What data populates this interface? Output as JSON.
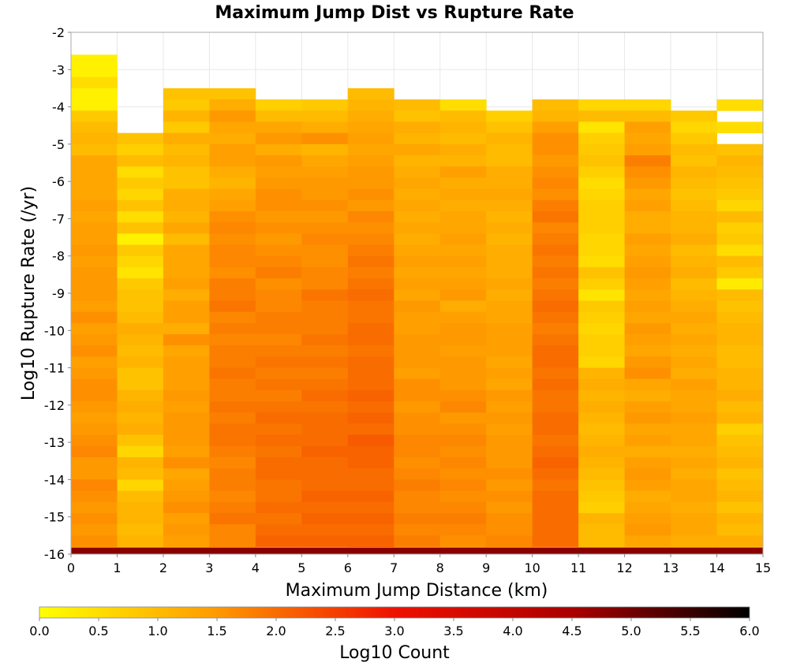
{
  "chart_data": {
    "type": "heatmap",
    "title": "Maximum Jump Dist vs Rupture Rate",
    "xlabel": "Maximum Jump Distance (km)",
    "ylabel": "Log10 Rupture Rate (/yr)",
    "colorbar_label": "Log10 Count",
    "xlim": [
      0,
      15
    ],
    "ylim": [
      -16,
      -2
    ],
    "x_ticks": [
      "0",
      "1",
      "2",
      "3",
      "4",
      "5",
      "6",
      "7",
      "8",
      "9",
      "10",
      "11",
      "12",
      "13",
      "14",
      "15"
    ],
    "y_ticks": [
      "-2",
      "-3",
      "-4",
      "-5",
      "-6",
      "-7",
      "-8",
      "-9",
      "-10",
      "-11",
      "-12",
      "-13",
      "-14",
      "-15",
      "-16"
    ],
    "colorbar_range": [
      0,
      6
    ],
    "colorbar_ticks": [
      "0.0",
      "0.5",
      "1.0",
      "1.5",
      "2.0",
      "2.5",
      "3.0",
      "3.5",
      "4.0",
      "4.5",
      "5.0",
      "5.5",
      "6.0"
    ],
    "colormap": [
      "#ffff00",
      "#ff9900",
      "#ee1100",
      "#aa0000",
      "#000000"
    ],
    "grid": true,
    "x_bin_width": 1,
    "y_bin_width": 0.3,
    "columns": [
      {
        "x": 0,
        "top": -2.6,
        "v": [
          0.2,
          0.2,
          0.5,
          0.2,
          0.2,
          0.8,
          1.0,
          1.1,
          1.0,
          1.3,
          1.3,
          1.3,
          1.3,
          1.4,
          1.3,
          1.4,
          1.4,
          1.5,
          1.4,
          1.5,
          1.5,
          1.5,
          1.4,
          1.6,
          1.4,
          1.5,
          1.6,
          1.4,
          1.5,
          1.6,
          1.6,
          1.5,
          1.4,
          1.5,
          1.6,
          1.7,
          1.5,
          1.5,
          1.7,
          1.6,
          1.5,
          1.6,
          1.5,
          1.6,
          1.5,
          1.6
        ]
      },
      {
        "x": 1,
        "top": -4.7,
        "v": [
          0.9,
          0.7,
          1.0,
          0.5,
          0.8,
          0.6,
          0.9,
          0.5,
          0.9,
          0.2,
          0.8,
          0.6,
          0.4,
          0.8,
          0.9,
          0.9,
          1.0,
          1.2,
          1.1,
          1.0,
          1.1,
          0.9,
          0.9,
          1.1,
          1.2,
          1.1,
          1.2,
          0.9,
          0.6,
          1.1,
          1.0,
          0.6,
          1.0,
          1.1,
          1.1,
          1.0,
          1.1,
          1.2,
          0.8,
          1.1,
          1.0
        ]
      },
      {
        "x": 2,
        "top": -3.5,
        "v": [
          0.9,
          0.8,
          1.1,
          0.8,
          1.2,
          1.0,
          1.1,
          0.9,
          0.9,
          1.2,
          1.2,
          1.1,
          1.3,
          1.0,
          1.3,
          1.3,
          1.3,
          1.4,
          1.2,
          1.4,
          1.4,
          1.2,
          1.6,
          1.3,
          1.4,
          1.4,
          1.4,
          1.5,
          1.4,
          1.5,
          1.5,
          1.5,
          1.4,
          1.6,
          1.3,
          1.4,
          1.5,
          1.6,
          1.4,
          1.5,
          1.4,
          1.3,
          1.4,
          1.5,
          1.4
        ]
      },
      {
        "x": 3,
        "top": -3.5,
        "v": [
          0.9,
          1.2,
          1.5,
          1.3,
          1.2,
          1.4,
          1.4,
          1.2,
          1.1,
          1.3,
          1.4,
          1.6,
          1.7,
          1.6,
          1.7,
          1.7,
          1.6,
          1.8,
          1.8,
          1.9,
          1.7,
          1.8,
          1.7,
          1.8,
          1.8,
          1.9,
          1.8,
          1.8,
          1.9,
          1.8,
          1.9,
          1.9,
          1.8,
          1.7,
          1.8,
          1.8,
          1.7,
          1.8,
          1.9,
          1.7,
          1.7,
          1.8,
          1.8,
          1.7,
          1.8
        ]
      },
      {
        "x": 4,
        "top": -3.8,
        "v": [
          0.7,
          1.0,
          1.3,
          1.5,
          1.2,
          1.5,
          1.4,
          1.5,
          1.6,
          1.6,
          1.5,
          1.6,
          1.5,
          1.6,
          1.7,
          1.8,
          1.6,
          1.7,
          1.7,
          1.8,
          1.8,
          1.7,
          1.8,
          1.9,
          1.8,
          1.9,
          1.8,
          1.9,
          2.0,
          1.9,
          2.0,
          1.9,
          2.0,
          2.0,
          1.9,
          1.9,
          2.0,
          1.9,
          2.0,
          2.1,
          2.0,
          1.9,
          2.0,
          2.0
        ]
      },
      {
        "x": 5,
        "top": -3.8,
        "v": [
          0.8,
          1.0,
          1.2,
          1.6,
          1.1,
          1.3,
          1.4,
          1.5,
          1.5,
          1.6,
          1.5,
          1.6,
          1.7,
          1.6,
          1.6,
          1.7,
          1.7,
          1.9,
          1.8,
          1.8,
          1.8,
          1.9,
          1.8,
          1.9,
          1.8,
          1.9,
          2.0,
          1.9,
          2.0,
          2.0,
          2.0,
          2.1,
          2.0,
          2.0,
          2.0,
          2.1,
          2.0,
          2.1,
          2.0,
          2.1,
          2.1,
          2.2,
          2.1,
          2.0
        ]
      },
      {
        "x": 6,
        "top": -3.5,
        "v": [
          1.0,
          1.1,
          1.2,
          1.3,
          1.4,
          1.3,
          1.4,
          1.5,
          1.5,
          1.6,
          1.5,
          1.7,
          1.6,
          1.7,
          1.8,
          1.9,
          1.8,
          1.9,
          2.0,
          1.9,
          1.9,
          2.0,
          2.0,
          1.9,
          2.0,
          2.0,
          2.0,
          2.1,
          2.0,
          2.1,
          2.0,
          2.2,
          2.1,
          2.1,
          2.0,
          2.0,
          2.1,
          2.0,
          2.1,
          2.0,
          2.1,
          2.2,
          2.1,
          2.1,
          2.1
        ]
      },
      {
        "x": 7,
        "top": -3.8,
        "v": [
          1.0,
          0.9,
          1.2,
          1.1,
          1.3,
          1.1,
          1.2,
          1.3,
          1.2,
          1.3,
          1.2,
          1.3,
          1.2,
          1.3,
          1.4,
          1.3,
          1.4,
          1.3,
          1.5,
          1.4,
          1.4,
          1.5,
          1.5,
          1.5,
          1.4,
          1.6,
          1.6,
          1.5,
          1.6,
          1.6,
          1.7,
          1.7,
          1.6,
          1.7,
          1.8,
          1.7,
          1.7,
          1.8,
          1.7,
          1.8,
          1.7,
          1.8,
          1.8,
          1.8
        ]
      },
      {
        "x": 8,
        "top": -3.8,
        "v": [
          0.5,
          1.0,
          1.1,
          1.0,
          1.2,
          1.1,
          1.4,
          1.2,
          1.3,
          1.2,
          1.3,
          1.3,
          1.4,
          1.3,
          1.4,
          1.3,
          1.4,
          1.5,
          1.2,
          1.4,
          1.5,
          1.5,
          1.4,
          1.5,
          1.5,
          1.5,
          1.6,
          1.7,
          1.5,
          1.6,
          1.7,
          1.6,
          1.7,
          1.6,
          1.7,
          1.6,
          1.7,
          1.8,
          1.7,
          1.6,
          1.7,
          1.7,
          1.7,
          1.7
        ]
      },
      {
        "x": 9,
        "top": -4.1,
        "v": [
          0.7,
          0.9,
          1.1,
          1.0,
          1.0,
          1.2,
          1.2,
          1.3,
          1.2,
          1.1,
          1.2,
          1.1,
          1.2,
          1.2,
          1.2,
          1.3,
          1.2,
          1.3,
          1.3,
          1.4,
          1.4,
          1.4,
          1.3,
          1.4,
          1.3,
          1.5,
          1.4,
          1.5,
          1.4,
          1.5,
          1.5,
          1.5,
          1.6,
          1.5,
          1.6,
          1.5,
          1.6,
          1.6,
          1.7,
          1.6,
          1.7,
          1.6,
          1.6
        ]
      },
      {
        "x": 10,
        "top": -3.8,
        "v": [
          1.0,
          1.1,
          1.4,
          1.6,
          1.6,
          1.5,
          1.6,
          1.7,
          1.6,
          1.8,
          1.9,
          1.7,
          1.8,
          1.9,
          1.8,
          1.9,
          1.8,
          1.9,
          2.0,
          1.9,
          1.8,
          1.9,
          2.0,
          2.0,
          1.9,
          2.0,
          1.9,
          1.9,
          2.0,
          2.0,
          1.9,
          2.0,
          2.1,
          2.0,
          1.9,
          2.0,
          2.0,
          2.0,
          2.0,
          2.0,
          2.0,
          2.0,
          2.0,
          2.0
        ]
      },
      {
        "x": 11,
        "top": -3.8,
        "v": [
          0.6,
          1.0,
          0.4,
          0.7,
          0.8,
          0.9,
          0.7,
          0.5,
          0.6,
          0.7,
          0.7,
          0.7,
          0.6,
          0.6,
          0.5,
          0.9,
          0.7,
          0.4,
          0.8,
          0.7,
          0.6,
          0.7,
          0.7,
          0.6,
          1.1,
          1.2,
          1.1,
          1.2,
          1.1,
          1.0,
          1.1,
          1.2,
          1.1,
          1.0,
          0.9,
          0.8,
          0.7,
          1.1,
          1.0,
          1.0,
          0.9,
          1.0,
          1.0,
          1.1
        ]
      },
      {
        "x": 12,
        "top": -3.8,
        "v": [
          0.6,
          1.0,
          1.4,
          1.3,
          1.4,
          1.8,
          1.6,
          1.5,
          1.3,
          1.4,
          1.2,
          1.2,
          1.4,
          1.3,
          1.4,
          1.5,
          1.4,
          1.3,
          1.4,
          1.3,
          1.5,
          1.4,
          1.3,
          1.5,
          1.6,
          1.3,
          1.2,
          1.4,
          1.5,
          1.3,
          1.4,
          1.2,
          1.4,
          1.5,
          1.4,
          1.2,
          1.3,
          1.4,
          1.5,
          1.3,
          1.5,
          1.4,
          1.3,
          1.4
        ]
      },
      {
        "x": 13,
        "top": -4.1,
        "v": [
          0.8,
          0.6,
          0.8,
          1.0,
          0.9,
          1.1,
          1.0,
          0.9,
          1.0,
          1.1,
          1.1,
          1.2,
          1.0,
          1.1,
          1.2,
          1.0,
          1.1,
          1.2,
          1.3,
          1.2,
          1.3,
          1.2,
          1.3,
          1.2,
          1.4,
          1.3,
          1.3,
          1.4,
          1.3,
          1.3,
          1.2,
          1.3,
          1.2,
          1.3,
          1.3,
          1.2,
          1.3,
          1.3,
          1.2,
          1.1,
          1.2,
          1.1,
          1.2
        ]
      },
      {
        "x": 14,
        "top": -3.8,
        "v": [
          0.5,
          null,
          0.5,
          null,
          0.9,
          1.1,
          1.0,
          0.9,
          0.8,
          0.6,
          1.0,
          0.7,
          0.8,
          0.5,
          1.0,
          0.8,
          0.3,
          1.0,
          0.9,
          1.0,
          1.1,
          1.1,
          1.0,
          1.0,
          1.1,
          1.1,
          1.2,
          1.0,
          1.1,
          0.7,
          0.9,
          1.0,
          1.1,
          0.9,
          1.0,
          1.1,
          0.9,
          1.1,
          1.0,
          1.2,
          0.9,
          1.1,
          1.1,
          1.0
        ]
      }
    ],
    "bottom_row": {
      "y": -16,
      "value": 4.8
    }
  }
}
